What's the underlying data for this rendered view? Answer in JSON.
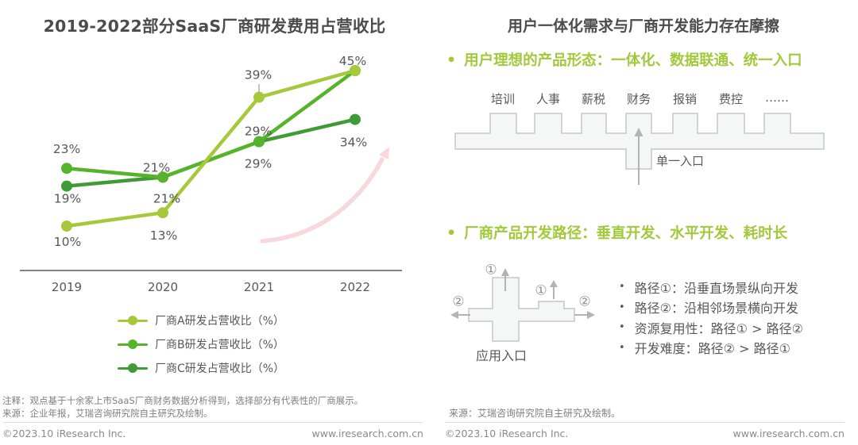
{
  "left": {
    "title": "2019-2022部分SaaS厂商研发费用占营收比",
    "note": "注释：观点基于十余家上市SaaS厂商财务数据分析得到，选择部分有代表性的厂商展示。",
    "source": "来源：企业年报，艾瑞咨询研究院自主研究及绘制。",
    "copyright": "©2023.10 iResearch Inc.",
    "website": "www.iresearch.com.cn"
  },
  "chart_data": {
    "type": "line",
    "title": "2019-2022部分SaaS厂商研发费用占营收比",
    "categories": [
      "2019",
      "2020",
      "2021",
      "2022"
    ],
    "series": [
      {
        "name": "厂商A研发占营收比（%）",
        "color": "#a5c93a",
        "values": [
          10,
          13,
          39,
          45
        ]
      },
      {
        "name": "厂商B研发占营收比（%）",
        "color": "#56b32c",
        "values": [
          23,
          21,
          29,
          45
        ]
      },
      {
        "name": "厂商C研发占营收比（%）",
        "color": "#3f9b35",
        "values": [
          19,
          21,
          29,
          34
        ]
      }
    ],
    "unit": "%",
    "xlabel": "",
    "ylabel": "",
    "ylim": [
      0,
      50
    ],
    "grid": false,
    "legend_position": "bottom",
    "annotations": [
      "粉色上升趋势箭头"
    ]
  },
  "right": {
    "title": "用户一体化需求与厂商开发能力存在摩擦",
    "bullet1": "用户理想的产品形态：一体化、数据联通、统一入口",
    "modules": [
      "培训",
      "人事",
      "薪税",
      "财务",
      "报销",
      "费控",
      "……"
    ],
    "single_entry_label": "单一入口",
    "bullet2": "厂商产品开发路径：垂直开发、水平开发、耗时长",
    "path1_badge": "①",
    "path2_badge": "②",
    "app_entry_label": "应用入口",
    "path_notes": [
      "路径①：沿垂直场景纵向开发",
      "路径②：沿相邻场景横向开发",
      "资源复用性：路径① > 路径②",
      "开发难度：路径② > 路径①"
    ],
    "source": "来源：艾瑞咨询研究院自主研究及绘制。",
    "copyright": "©2023.10 iResearch Inc.",
    "website": "www.iresearch.com.cn"
  },
  "colors": {
    "accent_green": "#a2c93b",
    "series_a": "#a5c93a",
    "series_b": "#56b32c",
    "series_c": "#3f9b35",
    "trend_arrow_pink": "#f8d8dc",
    "text_dark": "#4c4c4c",
    "text_gray": "#595757",
    "shape_fill": "#f5f6f6",
    "shape_stroke": "#c6c6c6",
    "arrow_gray": "#b3b3b3"
  }
}
